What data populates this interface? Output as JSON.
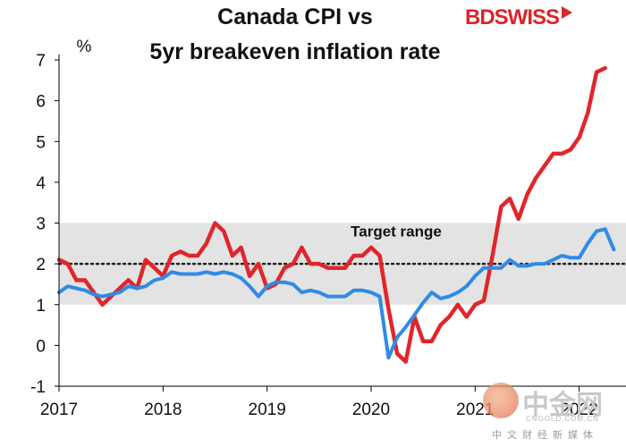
{
  "chart_data": {
    "type": "line",
    "title": [
      "Canada CPI vs",
      "5yr breakeven inflation rate"
    ],
    "ylabel": "%",
    "xlabel": "",
    "ylim": [
      -1,
      7
    ],
    "yticks": [
      "-1",
      "0",
      "1",
      "2",
      "3",
      "4",
      "5",
      "6",
      "7"
    ],
    "xticks": [
      "2017",
      "2018",
      "2019",
      "2020",
      "2021",
      "2022"
    ],
    "target_band": {
      "low": 1,
      "high": 3,
      "label": "Target range",
      "midpoint": 2
    },
    "series": [
      {
        "name": "Canada CPI",
        "color": "#e0262b",
        "x": [
          2017.0,
          2017.083,
          2017.167,
          2017.25,
          2017.333,
          2017.417,
          2017.5,
          2017.583,
          2017.667,
          2017.75,
          2017.833,
          2017.917,
          2018.0,
          2018.083,
          2018.167,
          2018.25,
          2018.333,
          2018.417,
          2018.5,
          2018.583,
          2018.667,
          2018.75,
          2018.833,
          2018.917,
          2019.0,
          2019.083,
          2019.167,
          2019.25,
          2019.333,
          2019.417,
          2019.5,
          2019.583,
          2019.667,
          2019.75,
          2019.833,
          2019.917,
          2020.0,
          2020.083,
          2020.167,
          2020.25,
          2020.333,
          2020.417,
          2020.5,
          2020.583,
          2020.667,
          2020.75,
          2020.833,
          2020.917,
          2021.0,
          2021.083,
          2021.167,
          2021.25,
          2021.333,
          2021.417,
          2021.5,
          2021.583,
          2021.667,
          2021.75,
          2021.833,
          2021.917,
          2022.0,
          2022.083,
          2022.167,
          2022.25
        ],
        "values": [
          2.1,
          2.0,
          1.6,
          1.6,
          1.3,
          1.0,
          1.2,
          1.4,
          1.6,
          1.4,
          2.1,
          1.9,
          1.7,
          2.2,
          2.3,
          2.2,
          2.2,
          2.5,
          3.0,
          2.8,
          2.2,
          2.4,
          1.7,
          2.0,
          1.4,
          1.5,
          1.9,
          2.0,
          2.4,
          2.0,
          2.0,
          1.9,
          1.9,
          1.9,
          2.2,
          2.2,
          2.4,
          2.2,
          0.9,
          -0.2,
          -0.4,
          0.7,
          0.1,
          0.1,
          0.5,
          0.7,
          1.0,
          0.7,
          1.0,
          1.1,
          2.2,
          3.4,
          3.6,
          3.1,
          3.7,
          4.1,
          4.4,
          4.7,
          4.7,
          4.8,
          5.1,
          5.7,
          6.7,
          6.8
        ]
      },
      {
        "name": "5yr breakeven inflation rate",
        "color": "#2f8be6",
        "x": [
          2017.0,
          2017.083,
          2017.167,
          2017.25,
          2017.333,
          2017.417,
          2017.5,
          2017.583,
          2017.667,
          2017.75,
          2017.833,
          2017.917,
          2018.0,
          2018.083,
          2018.167,
          2018.25,
          2018.333,
          2018.417,
          2018.5,
          2018.583,
          2018.667,
          2018.75,
          2018.833,
          2018.917,
          2019.0,
          2019.083,
          2019.167,
          2019.25,
          2019.333,
          2019.417,
          2019.5,
          2019.583,
          2019.667,
          2019.75,
          2019.833,
          2019.917,
          2020.0,
          2020.083,
          2020.167,
          2020.25,
          2020.333,
          2020.417,
          2020.5,
          2020.583,
          2020.667,
          2020.75,
          2020.833,
          2020.917,
          2021.0,
          2021.083,
          2021.167,
          2021.25,
          2021.333,
          2021.417,
          2021.5,
          2021.583,
          2021.667,
          2021.75,
          2021.833,
          2021.917,
          2022.0,
          2022.083,
          2022.167,
          2022.25,
          2022.333
        ],
        "values": [
          1.3,
          1.45,
          1.4,
          1.35,
          1.25,
          1.2,
          1.25,
          1.3,
          1.45,
          1.4,
          1.45,
          1.6,
          1.65,
          1.8,
          1.75,
          1.75,
          1.75,
          1.8,
          1.75,
          1.8,
          1.75,
          1.65,
          1.45,
          1.2,
          1.45,
          1.55,
          1.55,
          1.5,
          1.3,
          1.35,
          1.3,
          1.2,
          1.2,
          1.2,
          1.35,
          1.35,
          1.3,
          1.2,
          -0.3,
          0.2,
          0.45,
          0.75,
          1.05,
          1.3,
          1.15,
          1.2,
          1.3,
          1.45,
          1.7,
          1.9,
          1.9,
          1.9,
          2.1,
          1.95,
          1.95,
          2.0,
          2.0,
          2.1,
          2.2,
          2.15,
          2.15,
          2.5,
          2.8,
          2.85,
          2.35
        ]
      }
    ]
  },
  "brand": {
    "part1": "BD",
    "part2": "SWISS"
  },
  "watermark": {
    "main": "中金网",
    "sub": "CNGOLD.COM.CN",
    "tag": "中文财经新媒体"
  }
}
